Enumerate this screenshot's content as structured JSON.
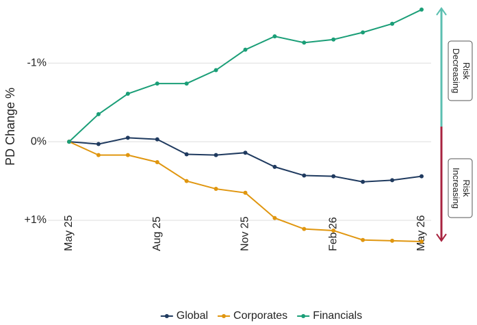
{
  "chart_data": {
    "type": "line",
    "y_label": "PD Change %",
    "categories": [
      "May 25",
      null,
      null,
      "Aug 25",
      null,
      null,
      "Nov 25",
      null,
      null,
      "Feb 26",
      null,
      null,
      "May 26"
    ],
    "series": [
      {
        "name": "Global",
        "color": "#1f3a5f",
        "values": [
          0,
          0.03,
          -0.05,
          -0.03,
          0.16,
          0.17,
          0.14,
          0.32,
          0.43,
          0.44,
          0.51,
          0.49,
          0.44
        ]
      },
      {
        "name": "Corporates",
        "color": "#e0960f",
        "values": [
          0,
          0.17,
          0.17,
          0.26,
          0.5,
          0.6,
          0.65,
          0.97,
          1.11,
          1.13,
          1.25,
          1.26,
          1.27
        ]
      },
      {
        "name": "Financials",
        "color": "#1a9e77",
        "values": [
          0,
          -0.35,
          -0.61,
          -0.74,
          -0.74,
          -0.91,
          -1.17,
          -1.34,
          -1.26,
          -1.3,
          -1.39,
          -1.5,
          -1.68
        ]
      }
    ],
    "ylim": [
      -1.75,
      1.3
    ],
    "y_inverted": true,
    "yticks": [
      {
        "value": -1,
        "label": "-1%"
      },
      {
        "value": 0,
        "label": "0%"
      },
      {
        "value": 1,
        "label": "+1%"
      }
    ],
    "grid": true,
    "legend": "bottom",
    "annotations": [
      {
        "lines": [
          "Risk",
          "Decreasing"
        ],
        "color": "#5bbfb0"
      },
      {
        "lines": [
          "Risk",
          "Increasing"
        ],
        "color": "#a8233f"
      }
    ]
  }
}
